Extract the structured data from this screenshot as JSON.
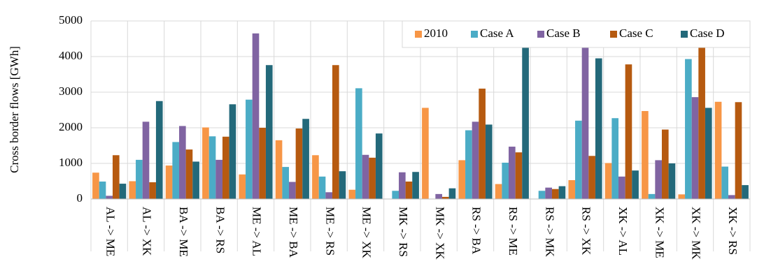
{
  "chart_data": {
    "type": "bar",
    "y_label": "Cross border flows [GWh]",
    "categories": [
      "AL -> ME",
      "AL -> XK",
      "BA -> ME",
      "BA -> RS",
      "ME -> AL",
      "ME -> BA",
      "ME -> RS",
      "ME -> XK",
      "MK -> RS",
      "MK -> XK",
      "RS -> BA",
      "RS -> ME",
      "RS -> MK",
      "RS -> XK",
      "XK -> AL",
      "XK -> ME",
      "XK -> MK",
      "XK -> RS"
    ],
    "series": [
      {
        "name": "2010",
        "color": "#f79646",
        "values": [
          740,
          500,
          940,
          2010,
          690,
          1650,
          1230,
          260,
          0,
          2560,
          1090,
          420,
          0,
          530,
          1010,
          2470,
          130,
          2730
        ]
      },
      {
        "name": "Case A",
        "color": "#4bacc6",
        "values": [
          490,
          1100,
          1600,
          1760,
          2790,
          900,
          630,
          3110,
          230,
          0,
          1930,
          1020,
          230,
          2200,
          2270,
          140,
          3930,
          910
        ]
      },
      {
        "name": "Case B",
        "color": "#8064a2",
        "values": [
          90,
          2170,
          2050,
          1100,
          4650,
          480,
          190,
          1240,
          750,
          140,
          2170,
          1470,
          320,
          4300,
          630,
          1090,
          2860,
          110
        ]
      },
      {
        "name": "Case C",
        "color": "#b65a10",
        "values": [
          1230,
          470,
          1390,
          1750,
          2000,
          1980,
          3760,
          1160,
          490,
          60,
          3100,
          1310,
          280,
          1210,
          3780,
          1950,
          4300,
          2720
        ]
      },
      {
        "name": "Case D",
        "color": "#23697a",
        "values": [
          430,
          2750,
          1050,
          2660,
          3760,
          2250,
          780,
          1840,
          760,
          300,
          2090,
          4400,
          360,
          3950,
          800,
          1000,
          2560,
          390
        ]
      }
    ],
    "ylim": [
      0,
      5000
    ],
    "yticks": [
      0,
      1000,
      2000,
      3000,
      4000,
      5000
    ],
    "grid": true,
    "legend": "upper right"
  }
}
